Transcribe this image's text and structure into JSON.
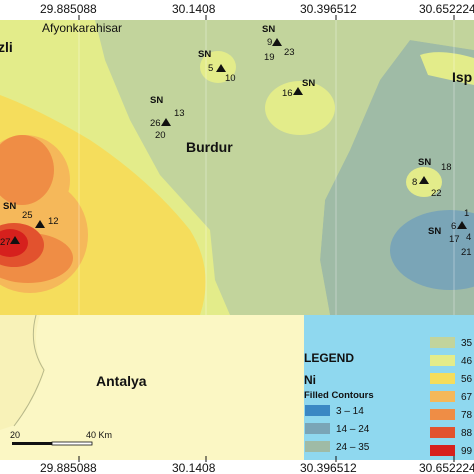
{
  "map": {
    "longitude_labels": [
      "29.885088",
      "30.1408",
      "30.396512",
      "30.652224"
    ],
    "places": {
      "afyonkarahisar": "Afyonkarahisar",
      "burdur": "Burdur",
      "antalya": "Antalya",
      "denizli_partial": "zli",
      "isparta_partial": "Isp"
    },
    "stations": [
      {
        "id": "5",
        "prefix": "SN",
        "side_label": "10"
      },
      {
        "id": "9",
        "prefix": "SN",
        "side_label": "23",
        "below_label": "19"
      },
      {
        "id": "16",
        "prefix": "SN"
      },
      {
        "id": "26",
        "prefix": "SN",
        "side_label": "13",
        "below_label": "20"
      },
      {
        "id": "8",
        "prefix": "SN",
        "side_label": "18",
        "below_label": "22"
      },
      {
        "id": "6",
        "prefix": "SN",
        "side_label": "1",
        "below_label": "17",
        "extra_labels": [
          "4",
          "21"
        ]
      },
      {
        "id": "27",
        "prefix": "SN",
        "side_label": "12",
        "top_label": "25"
      }
    ],
    "scale_bar": {
      "start": "20",
      "end": "40 Km"
    }
  },
  "legend": {
    "title": "LEGEND",
    "variable": "Ni",
    "subtitle": "Filled Contours",
    "classes_left": [
      {
        "label": "3 – 14",
        "color": "#3a88c4"
      },
      {
        "label": "14 – 24",
        "color": "#7aa5b7"
      },
      {
        "label": "24 – 35",
        "color": "#9fbba6"
      }
    ],
    "classes_right": [
      {
        "label": "35",
        "color": "#c2d49c"
      },
      {
        "label": "46",
        "color": "#e3ec8a"
      },
      {
        "label": "56",
        "color": "#f5dd5c"
      },
      {
        "label": "67",
        "color": "#f5b85a"
      },
      {
        "label": "78",
        "color": "#ef8d45"
      },
      {
        "label": "88",
        "color": "#e2522e"
      },
      {
        "label": "99",
        "color": "#d6201d"
      }
    ]
  },
  "colors": {
    "sea": "#8fd8ef",
    "land": "#fbf7c4",
    "ni_class_35_46": "#c2d49c",
    "ni_class_46_56": "#e3ec8a",
    "ni_class_56_67": "#f5dd5c",
    "ni_class_24_35": "#9fbba6",
    "ni_class_14_24": "#7aa5b7",
    "ni_class_78_88": "#ef8d45",
    "ni_class_88_99": "#e2522e",
    "ni_class_99": "#d6201d"
  }
}
